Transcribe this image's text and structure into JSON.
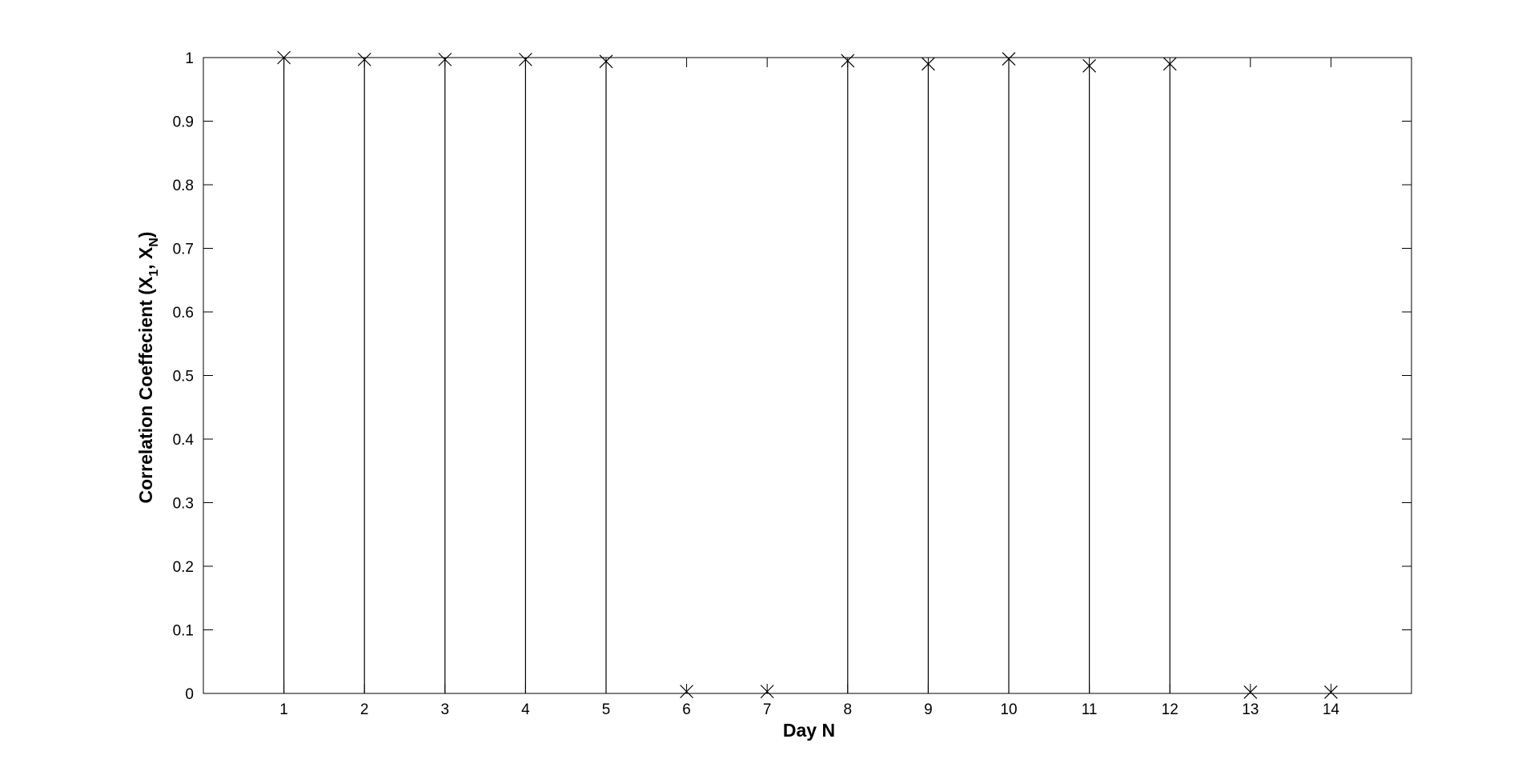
{
  "chart_data": {
    "type": "stem",
    "title": "",
    "xlabel": "Day N",
    "ylabel": {
      "prefix": "Correlation Coeffecient (X",
      "sub1": "1",
      "middle": ", X",
      "sub2": "N",
      "suffix": ")"
    },
    "x": [
      1,
      2,
      3,
      4,
      5,
      6,
      7,
      8,
      9,
      10,
      11,
      12,
      13,
      14
    ],
    "values": [
      1.0,
      0.997,
      0.997,
      0.997,
      0.994,
      0.003,
      0.003,
      0.995,
      0.99,
      0.998,
      0.987,
      0.99,
      0.002,
      0.002
    ],
    "xlim": [
      0,
      15
    ],
    "ylim": [
      0,
      1
    ],
    "xticks": [
      1,
      2,
      3,
      4,
      5,
      6,
      7,
      8,
      9,
      10,
      11,
      12,
      13,
      14
    ],
    "yticks": [
      0,
      0.1,
      0.2,
      0.3,
      0.4,
      0.5,
      0.6,
      0.7,
      0.8,
      0.9,
      1
    ],
    "marker": "x",
    "grid": false,
    "legend": "none",
    "colors": {
      "line": "#000000",
      "background": "#ffffff"
    }
  }
}
